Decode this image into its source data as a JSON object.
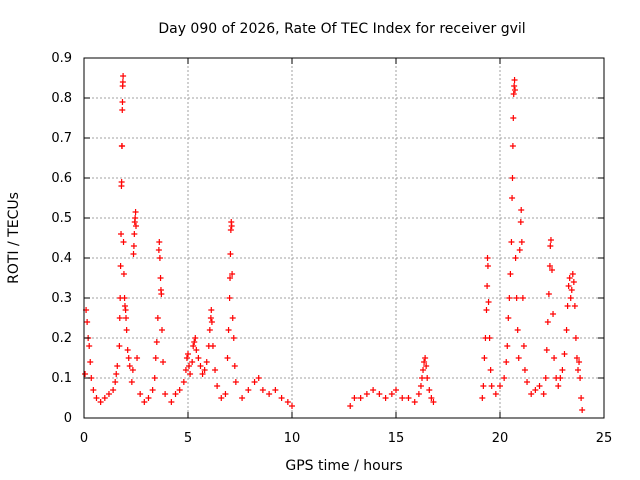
{
  "chart_data": {
    "type": "scatter",
    "title": "Day 090 of 2026, Rate Of TEC Index for receiver gvil",
    "xlabel": "GPS time / hours",
    "ylabel": "ROTI / TECUs",
    "xlim": [
      0,
      25
    ],
    "ylim": [
      0,
      0.9
    ],
    "xticks": [
      0,
      5,
      10,
      15,
      20,
      25
    ],
    "yticks": [
      0,
      0.1,
      0.2,
      0.3,
      0.4,
      0.5,
      0.6,
      0.7,
      0.8,
      0.9
    ],
    "xtick_labels": [
      "0",
      "5",
      "10",
      "15",
      "20",
      "25"
    ],
    "ytick_labels": [
      "0",
      "0.1",
      "0.2",
      "0.3",
      "0.4",
      "0.5",
      "0.6",
      "0.7",
      "0.8",
      "0.9"
    ],
    "grid": true,
    "marker": "+",
    "marker_color": "#ff0000",
    "data_gaps_hours": [
      [
        10.1,
        12.7
      ],
      [
        16.9,
        19.1
      ]
    ],
    "series": [
      {
        "name": "ROTI",
        "points": [
          [
            0.05,
            0.11
          ],
          [
            0.1,
            0.27
          ],
          [
            0.15,
            0.24
          ],
          [
            0.2,
            0.2
          ],
          [
            0.25,
            0.18
          ],
          [
            0.3,
            0.14
          ],
          [
            0.35,
            0.1
          ],
          [
            0.45,
            0.07
          ],
          [
            0.6,
            0.05
          ],
          [
            0.8,
            0.04
          ],
          [
            1.0,
            0.05
          ],
          [
            1.2,
            0.06
          ],
          [
            1.4,
            0.07
          ],
          [
            1.5,
            0.09
          ],
          [
            1.55,
            0.11
          ],
          [
            1.6,
            0.13
          ],
          [
            1.7,
            0.18
          ],
          [
            1.72,
            0.25
          ],
          [
            1.74,
            0.3
          ],
          [
            1.76,
            0.38
          ],
          [
            1.78,
            0.46
          ],
          [
            1.8,
            0.58
          ],
          [
            1.81,
            0.59
          ],
          [
            1.82,
            0.68
          ],
          [
            1.83,
            0.68
          ],
          [
            1.84,
            0.77
          ],
          [
            1.85,
            0.79
          ],
          [
            1.86,
            0.83
          ],
          [
            1.87,
            0.84
          ],
          [
            1.88,
            0.855
          ],
          [
            1.9,
            0.44
          ],
          [
            1.92,
            0.36
          ],
          [
            1.95,
            0.3
          ],
          [
            1.97,
            0.28
          ],
          [
            2.0,
            0.27
          ],
          [
            2.02,
            0.25
          ],
          [
            2.05,
            0.22
          ],
          [
            2.1,
            0.17
          ],
          [
            2.15,
            0.15
          ],
          [
            2.2,
            0.13
          ],
          [
            2.3,
            0.09
          ],
          [
            2.35,
            0.12
          ],
          [
            2.38,
            0.41
          ],
          [
            2.4,
            0.43
          ],
          [
            2.42,
            0.46
          ],
          [
            2.44,
            0.49
          ],
          [
            2.46,
            0.5
          ],
          [
            2.48,
            0.515
          ],
          [
            2.5,
            0.48
          ],
          [
            2.55,
            0.15
          ],
          [
            2.7,
            0.06
          ],
          [
            2.9,
            0.04
          ],
          [
            3.1,
            0.05
          ],
          [
            3.3,
            0.07
          ],
          [
            3.4,
            0.1
          ],
          [
            3.45,
            0.15
          ],
          [
            3.5,
            0.19
          ],
          [
            3.55,
            0.25
          ],
          [
            3.6,
            0.42
          ],
          [
            3.62,
            0.44
          ],
          [
            3.65,
            0.4
          ],
          [
            3.68,
            0.35
          ],
          [
            3.7,
            0.32
          ],
          [
            3.72,
            0.31
          ],
          [
            3.75,
            0.22
          ],
          [
            3.8,
            0.14
          ],
          [
            3.9,
            0.06
          ],
          [
            4.2,
            0.04
          ],
          [
            4.4,
            0.06
          ],
          [
            4.6,
            0.07
          ],
          [
            4.8,
            0.09
          ],
          [
            4.9,
            0.12
          ],
          [
            4.95,
            0.15
          ],
          [
            5.0,
            0.16
          ],
          [
            5.05,
            0.13
          ],
          [
            5.1,
            0.11
          ],
          [
            5.2,
            0.14
          ],
          [
            5.25,
            0.18
          ],
          [
            5.3,
            0.19
          ],
          [
            5.35,
            0.2
          ],
          [
            5.4,
            0.17
          ],
          [
            5.5,
            0.15
          ],
          [
            5.6,
            0.13
          ],
          [
            5.7,
            0.11
          ],
          [
            5.8,
            0.12
          ],
          [
            5.9,
            0.14
          ],
          [
            6.0,
            0.18
          ],
          [
            6.05,
            0.22
          ],
          [
            6.1,
            0.25
          ],
          [
            6.12,
            0.27
          ],
          [
            6.15,
            0.24
          ],
          [
            6.2,
            0.18
          ],
          [
            6.3,
            0.12
          ],
          [
            6.4,
            0.08
          ],
          [
            6.6,
            0.05
          ],
          [
            6.8,
            0.06
          ],
          [
            6.9,
            0.15
          ],
          [
            6.95,
            0.22
          ],
          [
            7.0,
            0.3
          ],
          [
            7.02,
            0.35
          ],
          [
            7.04,
            0.41
          ],
          [
            7.06,
            0.47
          ],
          [
            7.08,
            0.49
          ],
          [
            7.1,
            0.48
          ],
          [
            7.12,
            0.36
          ],
          [
            7.15,
            0.25
          ],
          [
            7.2,
            0.2
          ],
          [
            7.25,
            0.13
          ],
          [
            7.3,
            0.09
          ],
          [
            7.6,
            0.05
          ],
          [
            7.9,
            0.07
          ],
          [
            8.2,
            0.09
          ],
          [
            8.4,
            0.1
          ],
          [
            8.6,
            0.07
          ],
          [
            8.9,
            0.06
          ],
          [
            9.2,
            0.07
          ],
          [
            9.5,
            0.05
          ],
          [
            9.8,
            0.04
          ],
          [
            10.0,
            0.03
          ],
          [
            12.8,
            0.03
          ],
          [
            13.0,
            0.05
          ],
          [
            13.3,
            0.05
          ],
          [
            13.6,
            0.06
          ],
          [
            13.9,
            0.07
          ],
          [
            14.2,
            0.06
          ],
          [
            14.5,
            0.05
          ],
          [
            14.8,
            0.06
          ],
          [
            15.0,
            0.07
          ],
          [
            15.3,
            0.05
          ],
          [
            15.6,
            0.05
          ],
          [
            15.9,
            0.04
          ],
          [
            16.1,
            0.06
          ],
          [
            16.2,
            0.08
          ],
          [
            16.25,
            0.1
          ],
          [
            16.3,
            0.12
          ],
          [
            16.35,
            0.14
          ],
          [
            16.4,
            0.15
          ],
          [
            16.45,
            0.13
          ],
          [
            16.5,
            0.1
          ],
          [
            16.6,
            0.07
          ],
          [
            16.7,
            0.05
          ],
          [
            16.8,
            0.04
          ],
          [
            19.15,
            0.05
          ],
          [
            19.2,
            0.08
          ],
          [
            19.25,
            0.15
          ],
          [
            19.3,
            0.2
          ],
          [
            19.35,
            0.27
          ],
          [
            19.38,
            0.33
          ],
          [
            19.4,
            0.4
          ],
          [
            19.42,
            0.38
          ],
          [
            19.45,
            0.29
          ],
          [
            19.5,
            0.2
          ],
          [
            19.55,
            0.12
          ],
          [
            19.6,
            0.08
          ],
          [
            19.8,
            0.06
          ],
          [
            20.0,
            0.08
          ],
          [
            20.2,
            0.1
          ],
          [
            20.3,
            0.14
          ],
          [
            20.35,
            0.18
          ],
          [
            20.4,
            0.25
          ],
          [
            20.45,
            0.3
          ],
          [
            20.5,
            0.36
          ],
          [
            20.55,
            0.44
          ],
          [
            20.58,
            0.55
          ],
          [
            20.6,
            0.6
          ],
          [
            20.62,
            0.68
          ],
          [
            20.64,
            0.75
          ],
          [
            20.66,
            0.81
          ],
          [
            20.68,
            0.83
          ],
          [
            20.7,
            0.845
          ],
          [
            20.72,
            0.82
          ],
          [
            20.75,
            0.4
          ],
          [
            20.8,
            0.3
          ],
          [
            20.85,
            0.22
          ],
          [
            20.9,
            0.15
          ],
          [
            20.95,
            0.42
          ],
          [
            21.0,
            0.49
          ],
          [
            21.02,
            0.52
          ],
          [
            21.05,
            0.44
          ],
          [
            21.1,
            0.3
          ],
          [
            21.15,
            0.18
          ],
          [
            21.2,
            0.12
          ],
          [
            21.3,
            0.09
          ],
          [
            21.5,
            0.06
          ],
          [
            21.7,
            0.07
          ],
          [
            21.9,
            0.08
          ],
          [
            22.1,
            0.06
          ],
          [
            22.2,
            0.1
          ],
          [
            22.25,
            0.17
          ],
          [
            22.3,
            0.24
          ],
          [
            22.35,
            0.31
          ],
          [
            22.4,
            0.38
          ],
          [
            22.42,
            0.43
          ],
          [
            22.45,
            0.445
          ],
          [
            22.5,
            0.37
          ],
          [
            22.55,
            0.26
          ],
          [
            22.6,
            0.15
          ],
          [
            22.7,
            0.1
          ],
          [
            22.8,
            0.08
          ],
          [
            22.9,
            0.1
          ],
          [
            23.0,
            0.12
          ],
          [
            23.1,
            0.16
          ],
          [
            23.2,
            0.22
          ],
          [
            23.25,
            0.28
          ],
          [
            23.3,
            0.33
          ],
          [
            23.35,
            0.35
          ],
          [
            23.4,
            0.3
          ],
          [
            23.45,
            0.32
          ],
          [
            23.5,
            0.36
          ],
          [
            23.55,
            0.34
          ],
          [
            23.6,
            0.28
          ],
          [
            23.65,
            0.2
          ],
          [
            23.7,
            0.15
          ],
          [
            23.75,
            0.12
          ],
          [
            23.8,
            0.14
          ],
          [
            23.85,
            0.1
          ],
          [
            23.9,
            0.05
          ],
          [
            23.95,
            0.02
          ]
        ]
      }
    ]
  }
}
